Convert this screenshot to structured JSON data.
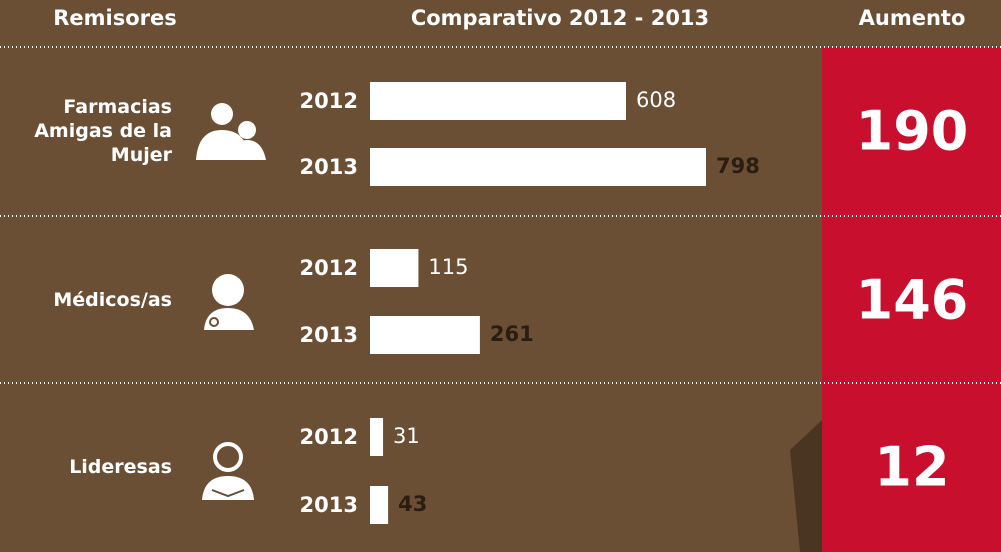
{
  "chart_data": {
    "type": "bar",
    "headers": [
      "Remisores",
      "Comparativo 2012 - 2013",
      "Aumento"
    ],
    "categories": [
      "Farmacias Amigas de la Mujer",
      "Médicos/as",
      "Lideresas"
    ],
    "series": [
      {
        "name": "2012",
        "color": "#ffffff",
        "values": [
          608,
          115,
          31
        ]
      },
      {
        "name": "2013",
        "color": "#ffffff",
        "values": [
          798,
          261,
          43
        ]
      }
    ],
    "increase": [
      190,
      146,
      12
    ]
  }
}
